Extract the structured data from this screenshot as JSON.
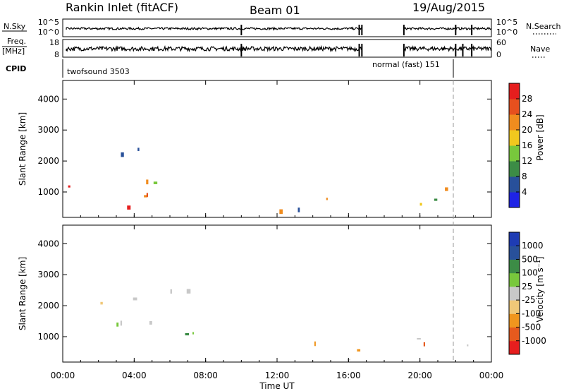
{
  "header": {
    "title": "Rankin Inlet (fitACF)",
    "beam": "Beam 01",
    "date": "19/Aug/2015"
  },
  "param_panels": {
    "nsky": {
      "label": "N.Sky",
      "ticks": [
        "10^5",
        "10^0"
      ]
    },
    "nsearch": {
      "label": "N.Search",
      "ticks": [
        "10^5",
        "10^0"
      ]
    },
    "freq": {
      "label_line1": "Freq.",
      "label_line2": "[MHz]",
      "ticks": [
        "18",
        "8"
      ]
    },
    "nave": {
      "label": "Nave",
      "ticks": [
        "60",
        "0"
      ]
    },
    "cpid": {
      "label": "CPID",
      "modes": [
        {
          "name": "twofsound 3503",
          "start_hour": 0,
          "end_hour": 22
        },
        {
          "name": "normal (fast) 151",
          "start_hour": 22,
          "end_hour": 24
        }
      ]
    }
  },
  "chart_data": [
    {
      "type": "heatmap",
      "panel": "power",
      "xlabel": "",
      "ylabel": "Slant Range [km]",
      "xlim": [
        0,
        24
      ],
      "ylim": [
        180,
        4600
      ],
      "yticks": [
        1000,
        2000,
        3000,
        4000
      ],
      "colorbar": {
        "label": "Power [dB]",
        "ticks": [
          "4",
          "8",
          "12",
          "16",
          "20",
          "24",
          "28"
        ],
        "colors": [
          "#1e23e6",
          "#28509a",
          "#3c8c46",
          "#78c83c",
          "#f0c81e",
          "#f08c1e",
          "#e6501e",
          "#e61e1e"
        ]
      },
      "data_gaps_hours": [
        [
          16.75,
          19.1
        ]
      ],
      "echo_regions": [
        {
          "t0": 0.3,
          "t1": 6.5,
          "r0": 200,
          "r1": 1300,
          "level": "high"
        },
        {
          "t0": 0.5,
          "t1": 4.5,
          "r0": 1700,
          "r1": 2600,
          "level": "medium"
        },
        {
          "t0": 3.0,
          "t1": 8.6,
          "r0": 1100,
          "r1": 1800,
          "level": "medium"
        },
        {
          "t0": 9.5,
          "t1": 16.7,
          "r0": 200,
          "r1": 900,
          "level": "mixed"
        },
        {
          "t0": 19.2,
          "t1": 24.0,
          "r0": 200,
          "r1": 1300,
          "level": "mixed"
        }
      ]
    },
    {
      "type": "heatmap",
      "panel": "velocity",
      "xlabel": "Time UT",
      "ylabel": "Slant Range [km]",
      "xlim": [
        0,
        24
      ],
      "ylim": [
        180,
        4600
      ],
      "xticks": [
        "00:00",
        "04:00",
        "08:00",
        "12:00",
        "16:00",
        "20:00",
        "00:00"
      ],
      "yticks": [
        1000,
        2000,
        3000,
        4000
      ],
      "colorbar": {
        "label": "Velocity [m s⁻¹]",
        "ticks": [
          "-1000",
          "-500",
          "-100",
          "-25",
          "25",
          "100",
          "500",
          "1000"
        ],
        "colors": [
          "#e61e1e",
          "#e65a1e",
          "#f0961e",
          "#f0c878",
          "#c8c8c8",
          "#78c83c",
          "#3c8c46",
          "#28509a",
          "#1e3cb4"
        ]
      },
      "data_gaps_hours": [
        [
          16.75,
          19.1
        ]
      ],
      "echo_regions": [
        {
          "t0": 0.3,
          "t1": 7.5,
          "r0": 1300,
          "r1": 2700,
          "level": "near-zero"
        },
        {
          "t0": 3.0,
          "t1": 8.6,
          "r0": 900,
          "r1": 1800,
          "level": "positive"
        },
        {
          "t0": 9.5,
          "t1": 16.7,
          "r0": 200,
          "r1": 900,
          "level": "negative"
        },
        {
          "t0": 19.2,
          "t1": 24.0,
          "r0": 200,
          "r1": 1300,
          "level": "negative"
        }
      ]
    }
  ]
}
